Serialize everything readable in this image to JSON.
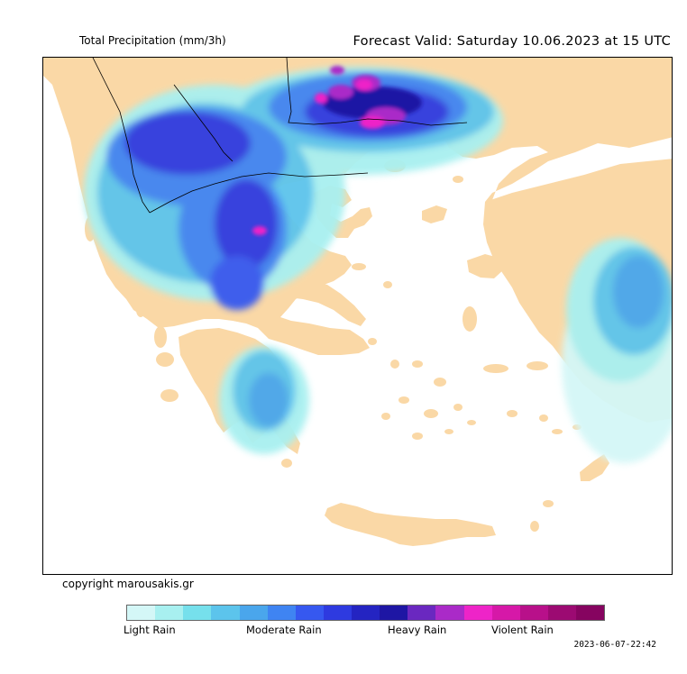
{
  "header": {
    "title_left": "Total Precipitation (mm/3h)",
    "title_right": "Forecast Valid:  Saturday 10.06.2023 at 15 UTC"
  },
  "footer": {
    "copyright": "copyright marousakis.gr",
    "timestamp": "2023-06-07-22:42"
  },
  "legend": {
    "labels": {
      "light": "Light Rain",
      "moderate": "Moderate Rain",
      "heavy": "Heavy Rain",
      "violent": "Violent Rain"
    },
    "colors": [
      "#d4f7f7",
      "#a8f0f0",
      "#76e0ec",
      "#5cc4ec",
      "#4aa6ec",
      "#3f84f2",
      "#3658f0",
      "#2e3ae0",
      "#2424c2",
      "#1e16a4",
      "#6a28c0",
      "#aa2ac8",
      "#ee24c8",
      "#d618a8",
      "#b8108a",
      "#9c0a72",
      "#860460"
    ]
  },
  "map": {
    "sea_color": "#ffffff",
    "land_color": "#fad8a6",
    "border_color": "#000000"
  }
}
